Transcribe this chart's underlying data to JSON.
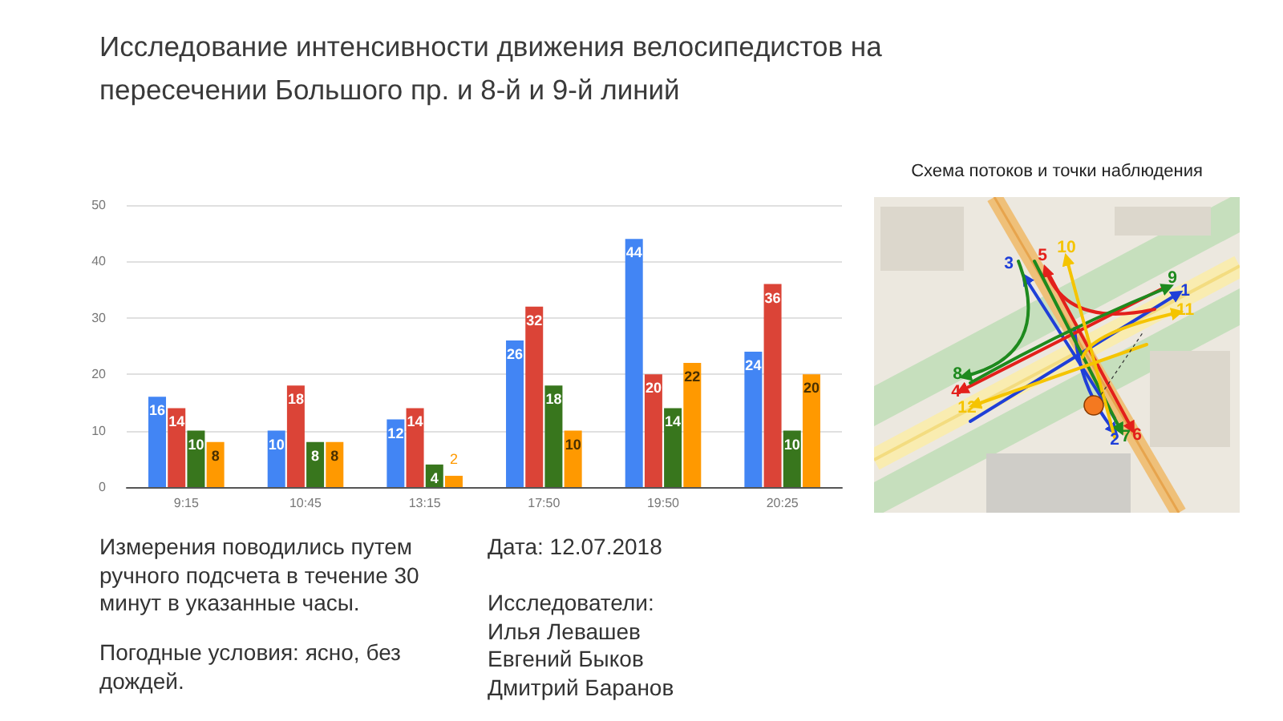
{
  "chart_data": {
    "type": "bar",
    "title": "Исследование интенсивности движения велосипедистов на пересечении Большого пр. и 8-й и 9-й линий",
    "categories": [
      "9:15",
      "10:45",
      "13:15",
      "17:50",
      "19:50",
      "20:25"
    ],
    "series": [
      {
        "color": "#4285f4",
        "values": [
          16,
          10,
          12,
          26,
          44,
          24
        ]
      },
      {
        "color": "#db4437",
        "values": [
          14,
          18,
          14,
          32,
          20,
          36
        ]
      },
      {
        "color": "#38761d",
        "values": [
          10,
          8,
          4,
          18,
          14,
          10
        ]
      },
      {
        "color": "#ff9900",
        "values": [
          8,
          8,
          2,
          10,
          22,
          20
        ]
      }
    ],
    "ylim": [
      0,
      50
    ],
    "yticks": [
      0,
      10,
      20,
      30,
      40,
      50
    ],
    "grid": "y",
    "data_labels": true,
    "annotations": [
      "Схема потоков и точки наблюдения",
      "1",
      "2",
      "3",
      "4",
      "5",
      "6",
      "7",
      "8",
      "9",
      "10",
      "11",
      "12",
      "Измерения поводились путем ручного подсчета в течение 30 минут в указанные часы.",
      "Погодные условия: ясно, без дождей.",
      "Дата: 12.07.2018",
      "Исследователи:\nИлья Левашев\nЕвгений Быков\nДмитрий Баранов"
    ]
  }
}
